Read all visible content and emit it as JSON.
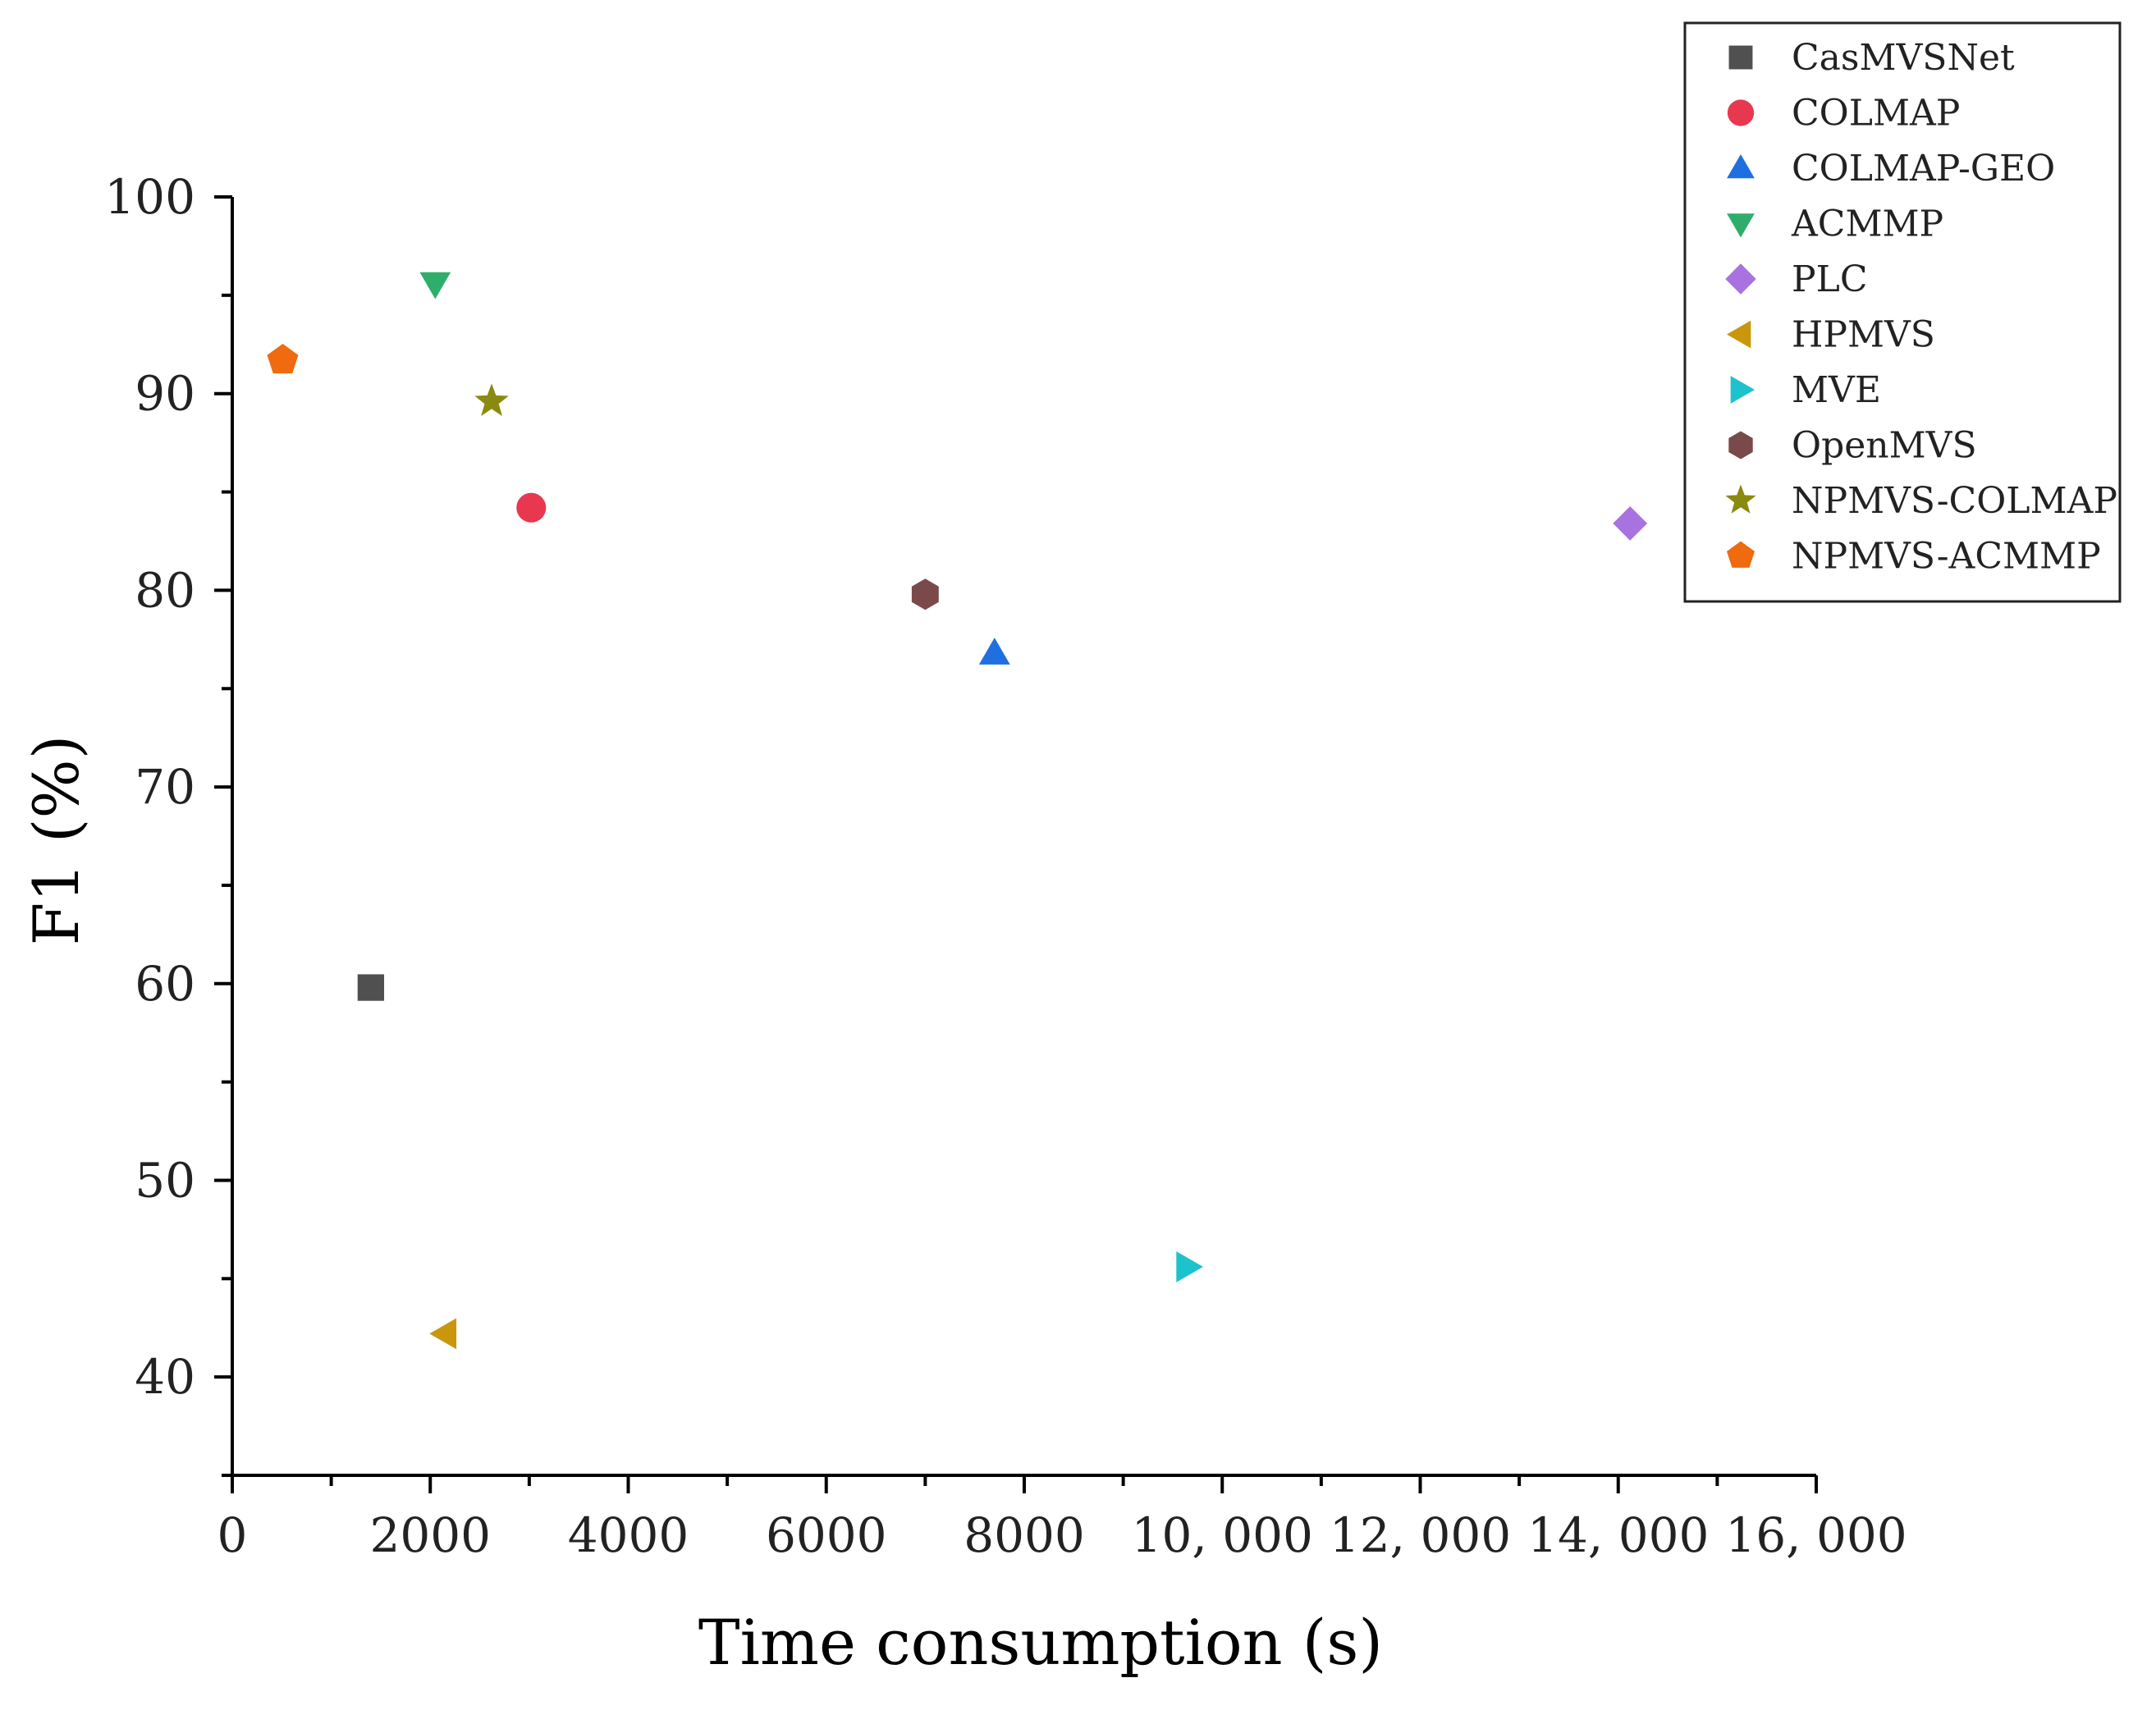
{
  "chart_data": {
    "type": "scatter",
    "title": "",
    "xlabel": "Time consumption (s)",
    "ylabel": "F1 (%)",
    "xlim": [
      0,
      16000
    ],
    "ylim": [
      35,
      100
    ],
    "x_ticks": [
      0,
      2000,
      4000,
      6000,
      8000,
      10000,
      12000,
      14000,
      16000
    ],
    "x_tick_labels": [
      "0",
      "2000",
      "4000",
      "6000",
      "8000",
      "10, 000",
      "12, 000",
      "14, 000",
      "16, 000"
    ],
    "y_ticks": [
      40,
      50,
      60,
      70,
      80,
      90,
      100
    ],
    "y_tick_labels": [
      "40",
      "50",
      "60",
      "70",
      "80",
      "90",
      "100"
    ],
    "legend_position": "top-right",
    "series": [
      {
        "name": "CasMVSNet",
        "marker": "square",
        "color": "#505050",
        "x": 1400,
        "y": 59.8
      },
      {
        "name": "COLMAP",
        "marker": "circle",
        "color": "#e8384f",
        "x": 3020,
        "y": 84.2
      },
      {
        "name": "COLMAP-GEO",
        "marker": "triangle-up",
        "color": "#1f6fe0",
        "x": 7700,
        "y": 76.8
      },
      {
        "name": "ACMMP",
        "marker": "triangle-down",
        "color": "#2fae6b",
        "x": 2050,
        "y": 95.6
      },
      {
        "name": "PLC",
        "marker": "diamond",
        "color": "#a872e0",
        "x": 14120,
        "y": 83.4
      },
      {
        "name": "HPMVS",
        "marker": "triangle-left",
        "color": "#c9960c",
        "x": 2150,
        "y": 42.2
      },
      {
        "name": "MVE",
        "marker": "triangle-right",
        "color": "#1cc2cc",
        "x": 9650,
        "y": 45.6
      },
      {
        "name": "OpenMVS",
        "marker": "hexagon",
        "color": "#7a4a4a",
        "x": 7000,
        "y": 79.8
      },
      {
        "name": "NPMVS-COLMAP",
        "marker": "star",
        "color": "#8a8a10",
        "x": 2620,
        "y": 89.6
      },
      {
        "name": "NPMVS-ACMMP",
        "marker": "pentagon",
        "color": "#f06a0f",
        "x": 510,
        "y": 91.7
      }
    ]
  }
}
